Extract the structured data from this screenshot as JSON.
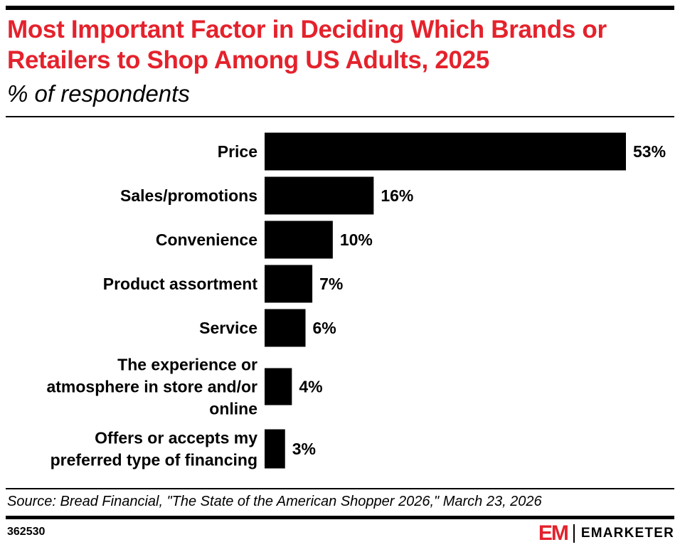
{
  "header": {
    "title": "Most Important Factor in Deciding Which Brands or Retailers to Shop Among US Adults, 2025",
    "subtitle": "% of respondents"
  },
  "chart_data": {
    "type": "bar",
    "orientation": "horizontal",
    "title": "Most Important Factor in Deciding Which Brands or Retailers to Shop Among US Adults, 2025",
    "subtitle": "% of respondents",
    "categories": [
      [
        "Price"
      ],
      [
        "Sales/promotions"
      ],
      [
        "Convenience"
      ],
      [
        "Product assortment"
      ],
      [
        "Service"
      ],
      [
        "The experience or",
        "atmosphere in store and/or",
        "online"
      ],
      [
        "Offers or accepts my",
        "preferred type of financing"
      ]
    ],
    "values": [
      53,
      16,
      10,
      7,
      6,
      4,
      3
    ],
    "value_labels": [
      "53%",
      "16%",
      "10%",
      "7%",
      "6%",
      "4%",
      "3%"
    ],
    "xlim": [
      0,
      53
    ],
    "grid": false,
    "bar_color": "#000000"
  },
  "footer": {
    "source": "Source: Bread Financial, \"The State of the American Shopper 2026,\" March 23, 2026",
    "chart_id": "362530",
    "logo_mark": "EM",
    "logo_text": "EMARKETER"
  },
  "colors": {
    "accent": "#e4222c",
    "text": "#000000"
  }
}
